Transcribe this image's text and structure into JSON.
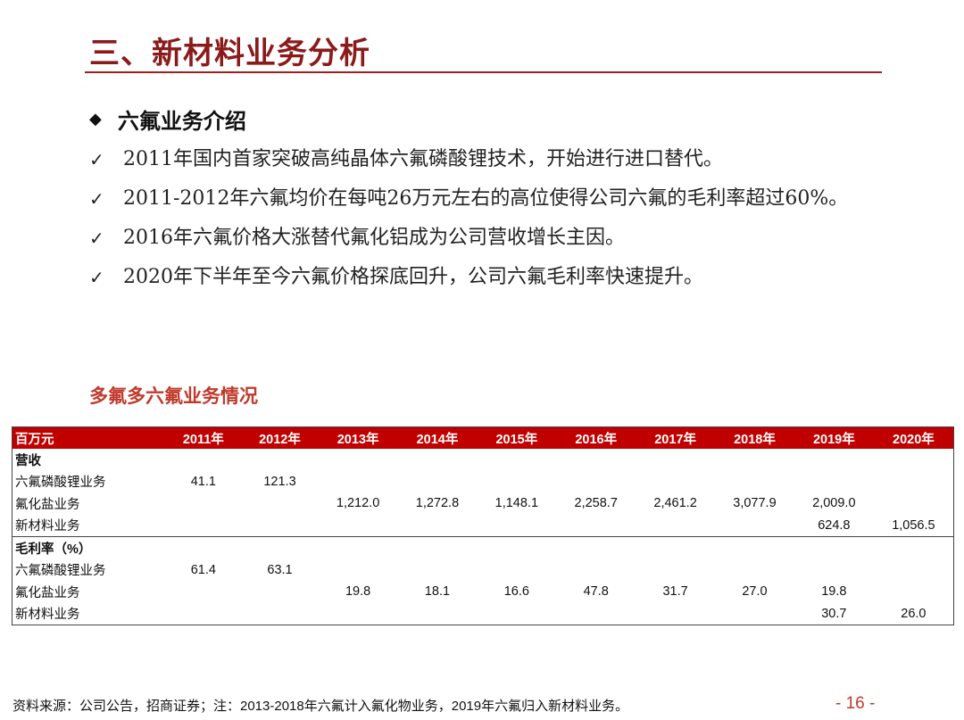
{
  "title": "三、新材料业务分析",
  "section_heading": "六氟业务介绍",
  "bullets": [
    "2011年国内首家突破高纯晶体六氟磷酸锂技术，开始进行进口替代。",
    "2011-2012年六氟均价在每吨26万元左右的高位使得公司六氟的毛利率超过60%。",
    "2016年六氟价格大涨替代氟化铝成为公司营收增长主因。",
    "2020年下半年至今六氟价格探底回升，公司六氟毛利率快速提升。"
  ],
  "table_caption": "多氟多六氟业务情况",
  "table": {
    "headers": [
      "百万元",
      "2011年",
      "2012年",
      "2013年",
      "2014年",
      "2015年",
      "2016年",
      "2017年",
      "2018年",
      "2019年",
      "2020年"
    ],
    "groups": [
      {
        "label": "营收",
        "rows": [
          [
            "六氟磷酸锂业务",
            "41.1",
            "121.3",
            "",
            "",
            "",
            "",
            "",
            "",
            "",
            ""
          ],
          [
            "氟化盐业务",
            "",
            "",
            "1,212.0",
            "1,272.8",
            "1,148.1",
            "2,258.7",
            "2,461.2",
            "3,077.9",
            "2,009.0",
            ""
          ],
          [
            "新材料业务",
            "",
            "",
            "",
            "",
            "",
            "",
            "",
            "",
            "624.8",
            "1,056.5"
          ]
        ]
      },
      {
        "label": "毛利率（%）",
        "rows": [
          [
            "六氟磷酸锂业务",
            "61.4",
            "63.1",
            "",
            "",
            "",
            "",
            "",
            "",
            "",
            ""
          ],
          [
            "氟化盐业务",
            "",
            "",
            "19.8",
            "18.1",
            "16.6",
            "47.8",
            "31.7",
            "27.0",
            "19.8",
            ""
          ],
          [
            "新材料业务",
            "",
            "",
            "",
            "",
            "",
            "",
            "",
            "",
            "30.7",
            "26.0"
          ]
        ]
      }
    ]
  },
  "footer_note": "资料来源：公司公告，招商证券；注：2013-2018年六氟计入氟化物业务，2019年六氟归入新材料业务。",
  "page_number": "- 16 -",
  "icons": {
    "section_marker": "diamond-icon",
    "bullet_marker": "check-icon"
  }
}
